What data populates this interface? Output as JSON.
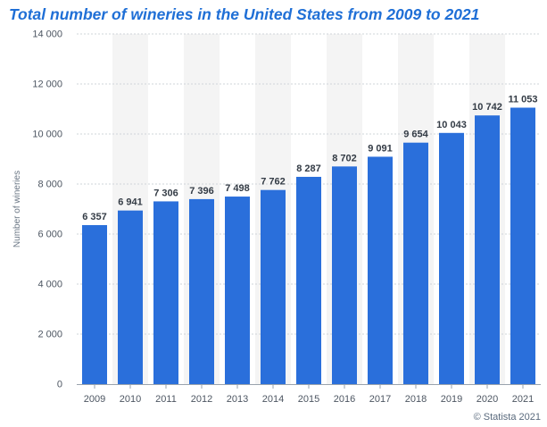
{
  "chart_data": {
    "type": "bar",
    "title": "Total number of wineries in the United States from 2009 to 2021",
    "xlabel": "",
    "ylabel": "Number of wineries",
    "categories": [
      "2009",
      "2010",
      "2011",
      "2012",
      "2013",
      "2014",
      "2015",
      "2016",
      "2017",
      "2018",
      "2019",
      "2020",
      "2021"
    ],
    "values": [
      6357,
      6941,
      7306,
      7396,
      7498,
      7762,
      8287,
      8702,
      9091,
      9654,
      10043,
      10742,
      11053
    ],
    "data_labels": [
      "6 357",
      "6 941",
      "7 306",
      "7 396",
      "7 498",
      "7 762",
      "8 287",
      "8 702",
      "9 091",
      "9 654",
      "10 043",
      "10 742",
      "11 053"
    ],
    "ylim": [
      0,
      14000
    ],
    "yticks": [
      0,
      2000,
      4000,
      6000,
      8000,
      10000,
      12000,
      14000
    ],
    "ytick_labels": [
      "0",
      "2 000",
      "4 000",
      "6 000",
      "8 000",
      "10 000",
      "12 000",
      "14 000"
    ],
    "grid": true,
    "legend": "none",
    "colors": {
      "bar": "#2a6fdb",
      "title": "#1f6fd6",
      "band": "#f4f4f4",
      "grid": "#cfd4da"
    }
  },
  "credit": "© Statista 2021"
}
